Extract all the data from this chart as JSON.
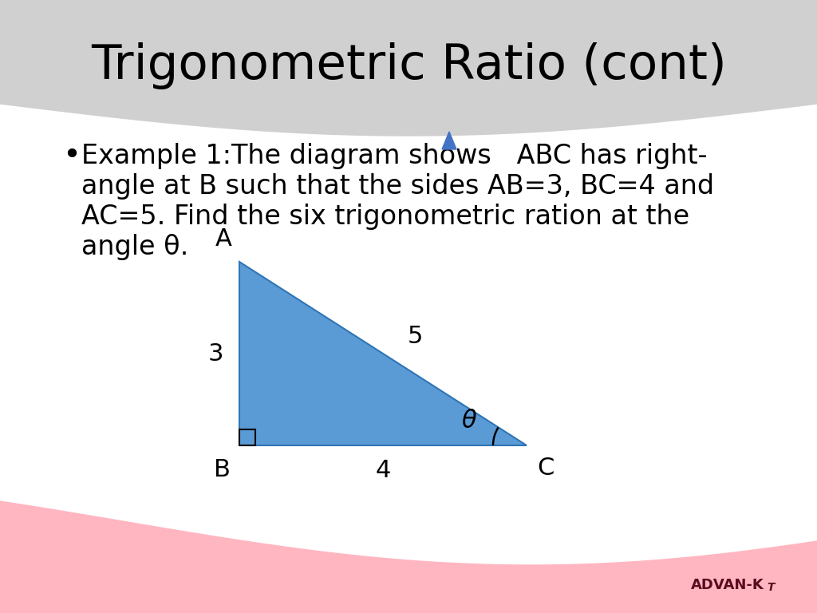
{
  "title": "Trigonometric Ratio (cont)",
  "title_fontsize": 44,
  "title_color": "#000000",
  "bg_color": "#ffffff",
  "header_bg_color": "#d0d0d0",
  "footer_bg_color": "#ffb6c1",
  "bullet_text_line1": "Example 1:The diagram shows   ABC has right-",
  "bullet_text_line2": "angle at B such that the sides AB=3, BC=4 and",
  "bullet_text_line3": "AC=5. Find the six trigonometric ration at the",
  "bullet_text_line4": "angle θ.",
  "bullet_fontsize": 24,
  "triangle_fill": "#5b9bd5",
  "triangle_edge": "#2e75b6",
  "label_A": "A",
  "label_B": "B",
  "label_C": "C",
  "side_AB": "3",
  "side_BC": "4",
  "side_AC": "5",
  "theta_label": "θ",
  "arrow_color": "#4472c4"
}
